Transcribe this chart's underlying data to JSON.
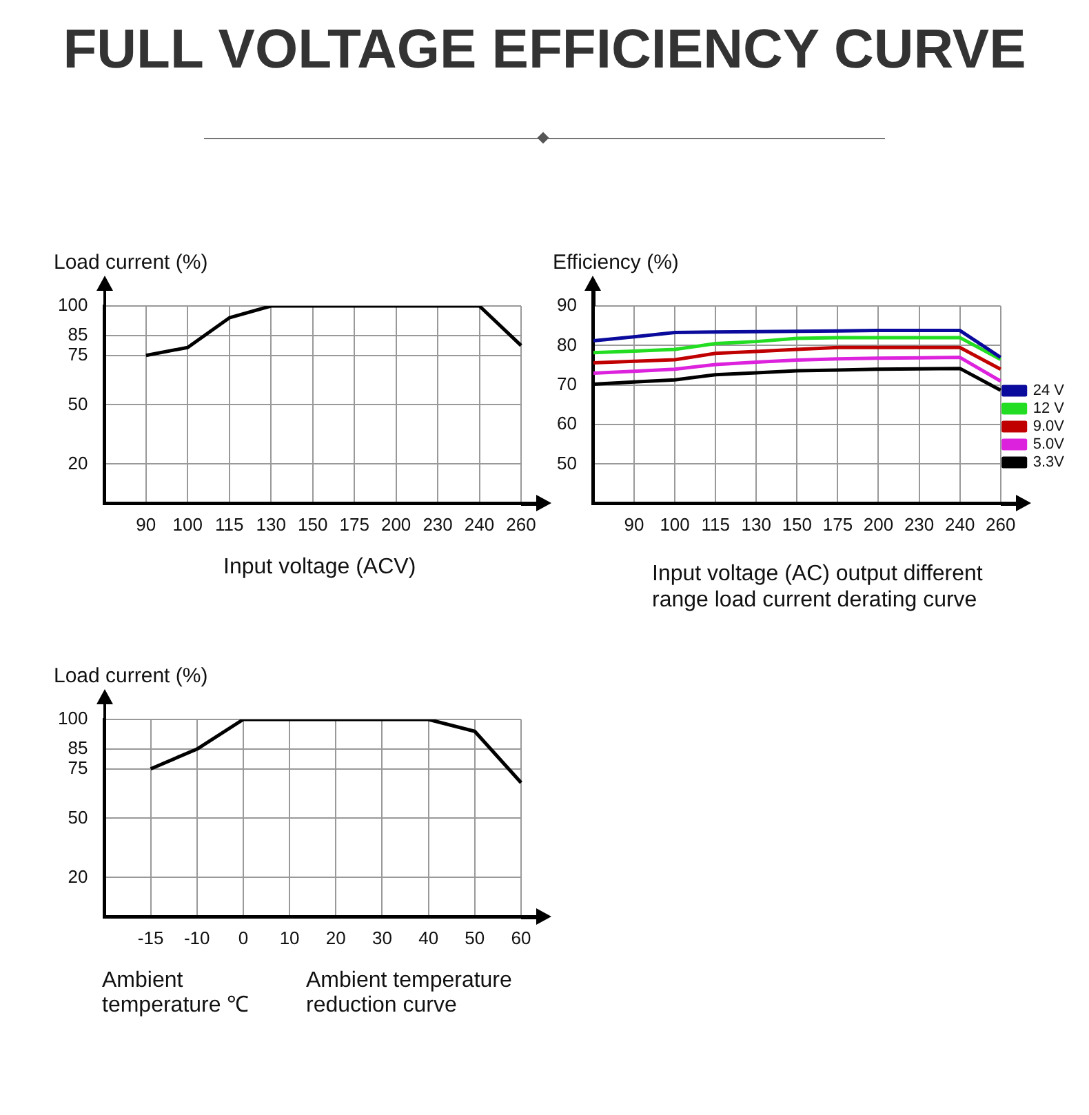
{
  "chart_data": [
    {
      "type": "line",
      "title": "FULL VOLTAGE EFFICIENCY CURVE",
      "ylabel": "Load current (%)",
      "xlabel": "Input voltage (ACV)",
      "categories": [
        null,
        "90",
        "100",
        "115",
        "130",
        "150",
        "175",
        "200",
        "230",
        "240",
        "260"
      ],
      "values": [
        null,
        75,
        79,
        94,
        100,
        100,
        100,
        100,
        100,
        100,
        80
      ],
      "color": "#000000",
      "ylim": [
        0,
        100
      ],
      "yticks": [
        20,
        50,
        75,
        85,
        100
      ],
      "grid": true,
      "marker": "none",
      "line_style": "solid"
    },
    {
      "type": "line",
      "ylabel": "Efficiency (%)",
      "xlabel": "Input voltage (AC) output different range load current derating curve",
      "categories": [
        null,
        "90",
        "100",
        "115",
        "130",
        "150",
        "175",
        "200",
        "230",
        "240",
        "260"
      ],
      "series": [
        {
          "name": "24 V",
          "color": "#0a0a9c",
          "values": [
            81.2,
            82.2,
            83.3,
            83.4,
            83.5,
            83.6,
            83.7,
            83.8,
            83.8,
            83.8,
            77
          ]
        },
        {
          "name": "12 V",
          "color": "#22dd22",
          "values": [
            78.2,
            78.6,
            79,
            80.5,
            81,
            81.8,
            82,
            82,
            82,
            82,
            76.5
          ]
        },
        {
          "name": "9.0V",
          "color": "#c00000",
          "values": [
            75.6,
            76,
            76.4,
            78,
            78.5,
            79,
            79.5,
            79.5,
            79.5,
            79.5,
            74
          ]
        },
        {
          "name": "5.0V",
          "color": "#dd22dd",
          "values": [
            73,
            73.5,
            74,
            75.2,
            75.8,
            76.3,
            76.6,
            76.8,
            76.9,
            77,
            71
          ]
        },
        {
          "name": "3.3V",
          "color": "#000000",
          "values": [
            70.2,
            70.8,
            71.3,
            72.6,
            73.1,
            73.6,
            73.8,
            74,
            74.1,
            74.2,
            68.7
          ]
        }
      ],
      "ylim": [
        40,
        90
      ],
      "yticks": [
        50,
        60,
        70,
        80,
        90
      ],
      "grid": true,
      "legend": "right",
      "marker": "none",
      "line_style": "solid"
    },
    {
      "type": "line",
      "ylabel": "Load current (%)",
      "xlabel": "Ambient temperature ℃",
      "annotations": [
        "Ambient temperature reduction curve"
      ],
      "categories": [
        null,
        "-15",
        "-10",
        "0",
        "10",
        "20",
        "30",
        "40",
        "50",
        "60"
      ],
      "values": [
        null,
        75,
        85,
        100,
        100,
        100,
        100,
        100,
        94,
        68
      ],
      "color": "#000000",
      "ylim": [
        0,
        100
      ],
      "yticks": [
        20,
        50,
        75,
        85,
        100
      ],
      "grid": true,
      "marker": "none",
      "line_style": "solid"
    }
  ]
}
